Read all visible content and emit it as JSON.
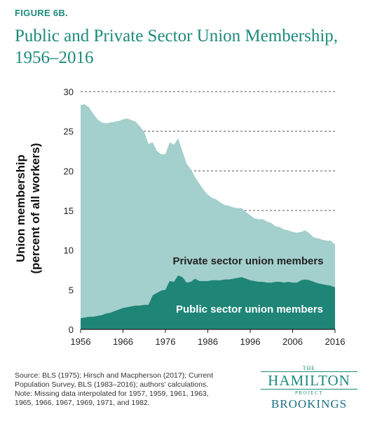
{
  "figure_label": "FIGURE 6B.",
  "chart_data": {
    "type": "area",
    "title": "Public and Private Sector Union Membership, 1956–2016",
    "xlabel": "",
    "ylabel": "Union membership (percent of all workers)",
    "ylabel_line1": "Union membership",
    "ylabel_line2": "(percent of all workers)",
    "xlim": [
      1956,
      2016
    ],
    "ylim": [
      0,
      30
    ],
    "x_ticks": [
      "1956",
      "1966",
      "1976",
      "1986",
      "1996",
      "2006",
      "2016"
    ],
    "y_ticks": [
      "0",
      "5",
      "10",
      "15",
      "20",
      "25",
      "30"
    ],
    "grid": "horizontal dashed",
    "stacked": true,
    "x": [
      1956,
      1957,
      1958,
      1959,
      1960,
      1961,
      1962,
      1963,
      1964,
      1965,
      1966,
      1967,
      1968,
      1969,
      1970,
      1971,
      1972,
      1973,
      1974,
      1975,
      1976,
      1977,
      1978,
      1979,
      1980,
      1981,
      1982,
      1983,
      1984,
      1985,
      1986,
      1987,
      1988,
      1989,
      1990,
      1991,
      1992,
      1993,
      1994,
      1995,
      1996,
      1997,
      1998,
      1999,
      2000,
      2001,
      2002,
      2003,
      2004,
      2005,
      2006,
      2007,
      2008,
      2009,
      2010,
      2011,
      2012,
      2013,
      2014,
      2015,
      2016
    ],
    "series": [
      {
        "name": "Public sector union members",
        "color": "#1e8577",
        "label": "Public sector union members",
        "values": [
          1.4,
          1.5,
          1.6,
          1.6,
          1.7,
          1.8,
          2.0,
          2.1,
          2.3,
          2.5,
          2.7,
          2.8,
          2.9,
          3.0,
          3.0,
          3.1,
          3.1,
          4.3,
          4.6,
          4.9,
          5.0,
          6.1,
          6.0,
          6.8,
          6.6,
          5.9,
          6.0,
          6.4,
          6.1,
          6.1,
          6.1,
          6.2,
          6.2,
          6.2,
          6.3,
          6.3,
          6.4,
          6.5,
          6.6,
          6.4,
          6.2,
          6.1,
          6.0,
          6.0,
          5.9,
          5.9,
          6.0,
          6.0,
          5.9,
          6.0,
          5.9,
          5.9,
          6.2,
          6.3,
          6.2,
          6.0,
          5.8,
          5.7,
          5.6,
          5.5,
          5.3
        ]
      },
      {
        "name": "Private sector union members",
        "color": "#a3cfcc",
        "label": "Private sector union members",
        "values": [
          26.9,
          26.9,
          26.4,
          25.6,
          24.8,
          24.3,
          24.0,
          24.0,
          23.9,
          23.8,
          23.8,
          23.8,
          23.5,
          23.2,
          22.6,
          21.8,
          20.3,
          19.3,
          17.9,
          17.2,
          17.1,
          17.5,
          17.3,
          17.3,
          15.9,
          15.0,
          14.2,
          12.8,
          12.3,
          11.5,
          10.9,
          10.4,
          10.2,
          9.8,
          9.4,
          9.3,
          9.0,
          8.8,
          8.7,
          8.4,
          8.2,
          7.9,
          7.9,
          7.9,
          7.7,
          7.5,
          7.0,
          6.9,
          6.7,
          6.5,
          6.4,
          6.3,
          6.1,
          6.2,
          5.9,
          5.6,
          5.7,
          5.6,
          5.6,
          5.7,
          5.4
        ]
      }
    ]
  },
  "notes": [
    "Source: BLS (1975); Hirsch and Macpherson (2017); Current",
    "Population Survey, BLS (1983–2016); authors’ calculations.",
    "Note: Missing data interpolated for 1957, 1959, 1961, 1963,",
    "1965, 1966, 1967, 1969, 1971, and 1982."
  ],
  "logo": {
    "the": "THE",
    "name": "HAMILTON",
    "project": "PROJECT",
    "org": "BROOKINGS"
  },
  "colors": {
    "accent": "#1d8a7c",
    "public": "#1e8577",
    "private": "#a3cfcc",
    "grid": "#555555"
  }
}
